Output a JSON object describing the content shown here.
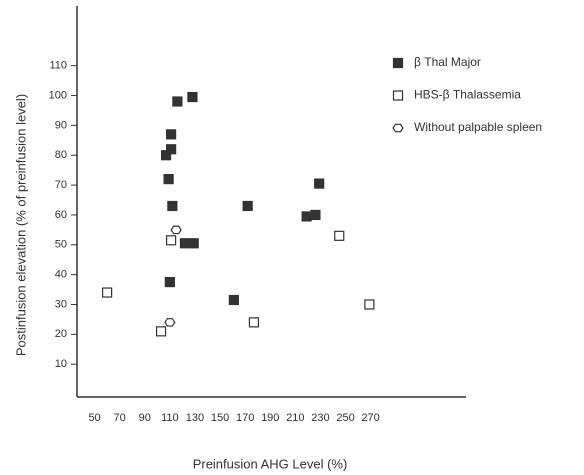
{
  "chart_data": {
    "type": "scatter",
    "x_label": "Preinfusion AHG Level (%)",
    "y_label": "Postinfusion elevation (% of preinfusion level)",
    "xlim": [
      36,
      346
    ],
    "ylim": [
      -1,
      130
    ],
    "xticks": [
      50,
      70,
      90,
      110,
      130,
      150,
      170,
      190,
      210,
      230,
      250,
      270
    ],
    "yticks": [
      10,
      20,
      30,
      40,
      50,
      60,
      70,
      80,
      90,
      100,
      110
    ],
    "legend": "upper right",
    "series": [
      {
        "name": "β Thal Major",
        "color": "#333333",
        "marker": "filled-square",
        "x": [
          128,
          116,
          111,
          111,
          107,
          109,
          112,
          172,
          219,
          226,
          229,
          122,
          129,
          110,
          161
        ],
        "values": [
          99.5,
          98,
          87,
          82,
          80,
          72,
          63,
          63,
          59.5,
          60,
          70.5,
          50.5,
          50.5,
          37.5,
          31.5
        ]
      },
      {
        "name": "HBS-β Thalassemia",
        "color": "#333333",
        "marker": "open-square",
        "x": [
          60,
          111,
          103,
          177,
          245,
          269
        ],
        "values": [
          34,
          51.5,
          21,
          24,
          53,
          30
        ]
      },
      {
        "name": "Without palpable spleen",
        "color": "#333333",
        "marker": "open-hexagon",
        "x": [
          115,
          110
        ],
        "values": [
          55,
          24
        ]
      }
    ]
  }
}
